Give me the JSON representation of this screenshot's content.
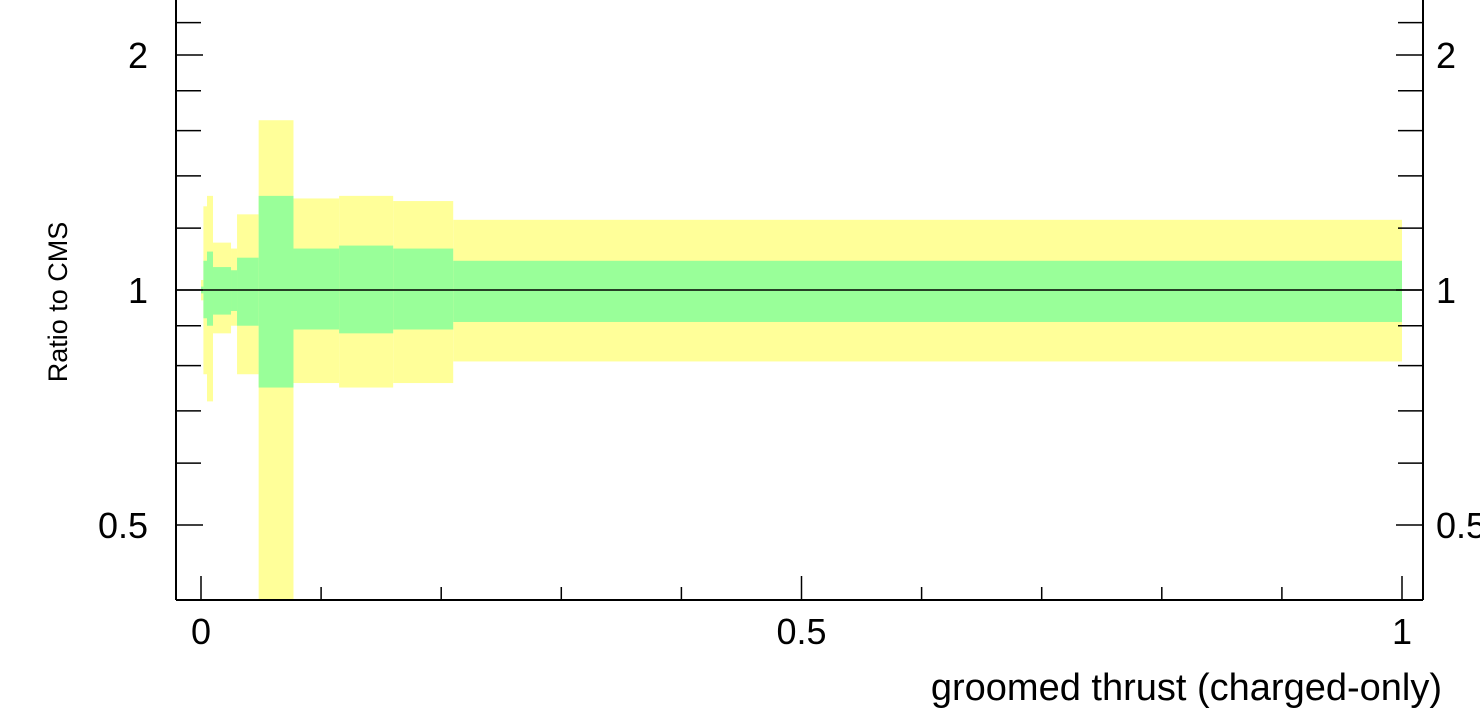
{
  "chart_data": {
    "type": "area",
    "title": "",
    "xlabel": "groomed thrust (charged-only)",
    "ylabel": "Ratio to CMS",
    "xlim": [
      -0.02,
      1.0
    ],
    "ylim": [
      0.35,
      2.5
    ],
    "y_scale": "log",
    "grid": false,
    "legend": "none",
    "x_tick_labels": [
      "0",
      "0.5",
      "1"
    ],
    "y_tick_labels": [
      "0.5",
      "1",
      "2"
    ],
    "reference_line": 1.0,
    "colors": {
      "outer_band": "#ffff99",
      "inner_band": "#99ff99",
      "line": "#000000"
    },
    "bins": [
      {
        "x": [
          0.0,
          0.002
        ],
        "outer": [
          0.97,
          1.03
        ],
        "inner": [
          0.99,
          1.01
        ]
      },
      {
        "x": [
          0.002,
          0.005
        ],
        "outer": [
          0.78,
          1.28
        ],
        "inner": [
          0.92,
          1.09
        ]
      },
      {
        "x": [
          0.005,
          0.01
        ],
        "outer": [
          0.72,
          1.32
        ],
        "inner": [
          0.9,
          1.12
        ]
      },
      {
        "x": [
          0.01,
          0.025
        ],
        "outer": [
          0.88,
          1.15
        ],
        "inner": [
          0.93,
          1.07
        ]
      },
      {
        "x": [
          0.025,
          0.03
        ],
        "outer": [
          0.9,
          1.13
        ],
        "inner": [
          0.94,
          1.06
        ]
      },
      {
        "x": [
          0.03,
          0.048
        ],
        "outer": [
          0.78,
          1.25
        ],
        "inner": [
          0.9,
          1.1
        ]
      },
      {
        "x": [
          0.048,
          0.077
        ],
        "outer": [
          0.35,
          1.65
        ],
        "inner": [
          0.75,
          1.32
        ]
      },
      {
        "x": [
          0.077,
          0.115
        ],
        "outer": [
          0.76,
          1.31
        ],
        "inner": [
          0.89,
          1.13
        ]
      },
      {
        "x": [
          0.115,
          0.16
        ],
        "outer": [
          0.75,
          1.32
        ],
        "inner": [
          0.88,
          1.14
        ]
      },
      {
        "x": [
          0.16,
          0.21
        ],
        "outer": [
          0.76,
          1.3
        ],
        "inner": [
          0.89,
          1.13
        ]
      },
      {
        "x": [
          0.21,
          1.0
        ],
        "outer": [
          0.81,
          1.23
        ],
        "inner": [
          0.91,
          1.09
        ]
      }
    ]
  }
}
